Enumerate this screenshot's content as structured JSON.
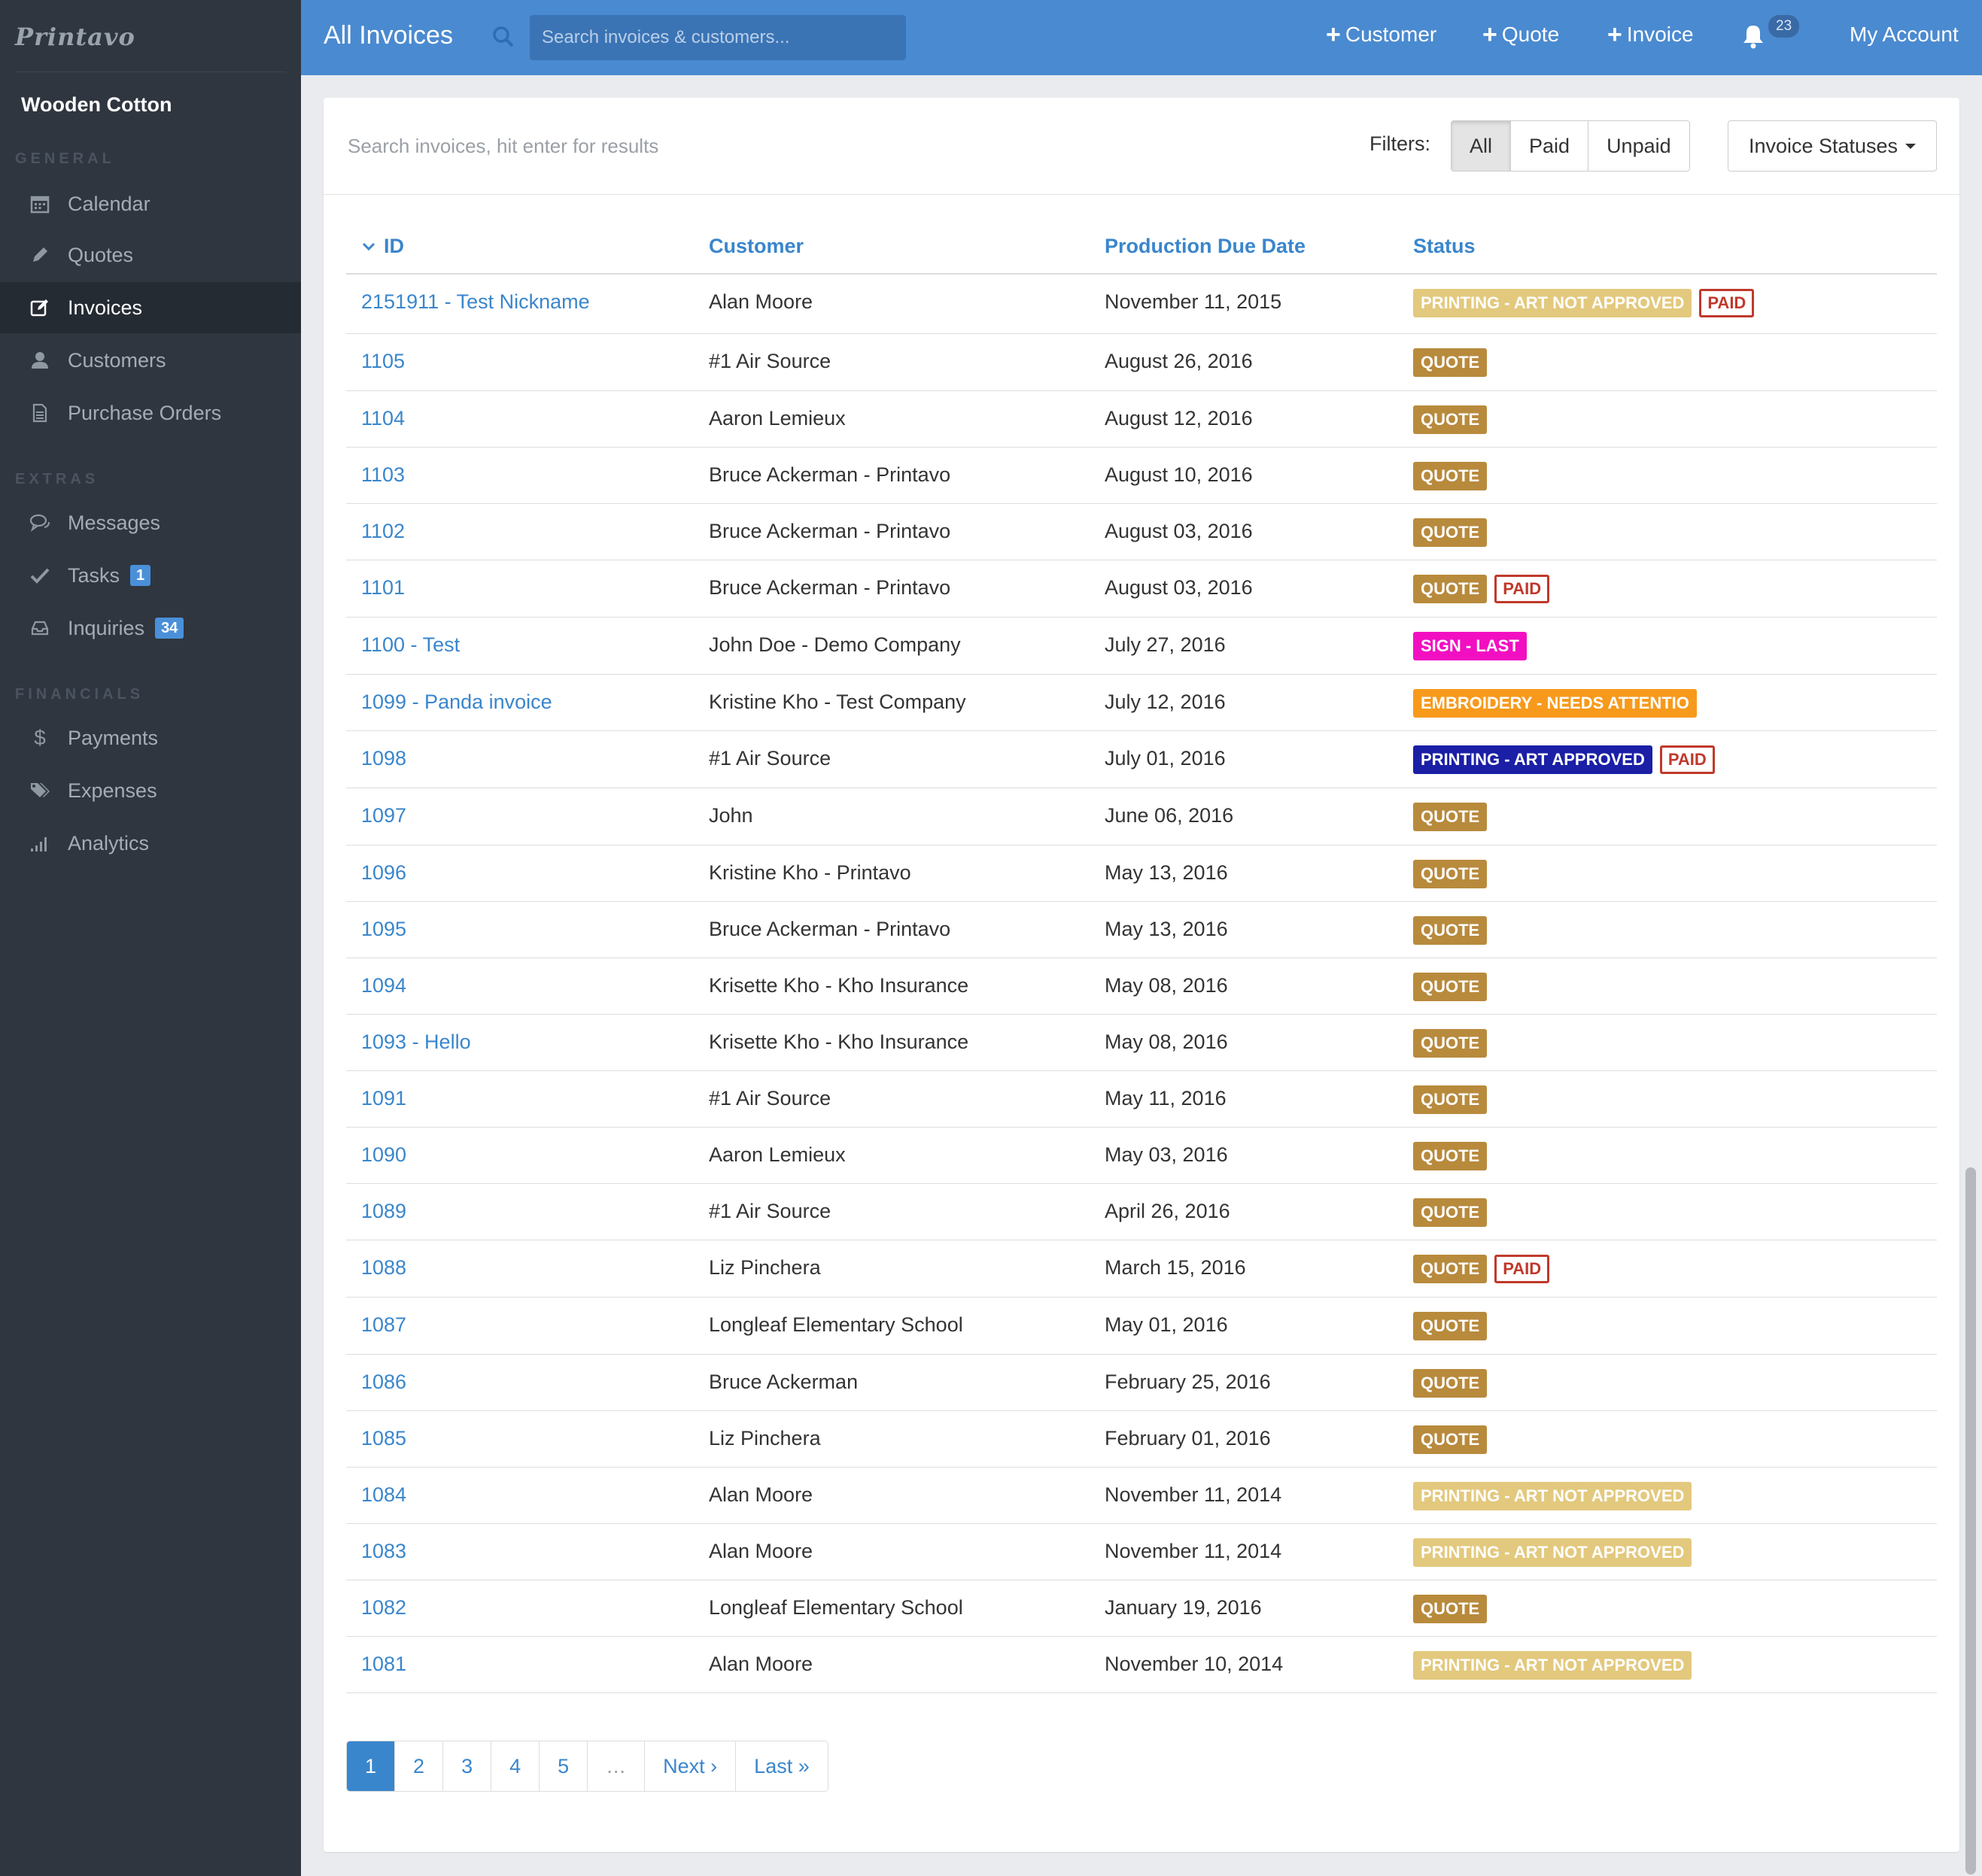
{
  "app": {
    "logo": "Printavo",
    "company": "Wooden Cotton"
  },
  "sidebar": {
    "sections": [
      {
        "label": "GENERAL",
        "items": [
          {
            "label": "Calendar",
            "icon": "calendar-icon"
          },
          {
            "label": "Quotes",
            "icon": "pencil-icon"
          },
          {
            "label": "Invoices",
            "icon": "edit-icon",
            "active": true
          },
          {
            "label": "Customers",
            "icon": "user-icon"
          },
          {
            "label": "Purchase Orders",
            "icon": "document-icon"
          }
        ]
      },
      {
        "label": "EXTRAS",
        "items": [
          {
            "label": "Messages",
            "icon": "chat-icon"
          },
          {
            "label": "Tasks",
            "icon": "check-icon",
            "badge": "1"
          },
          {
            "label": "Inquiries",
            "icon": "inbox-icon",
            "badge": "34"
          }
        ]
      },
      {
        "label": "FINANCIALS",
        "items": [
          {
            "label": "Payments",
            "icon": "dollar-icon"
          },
          {
            "label": "Expenses",
            "icon": "tags-icon"
          },
          {
            "label": "Analytics",
            "icon": "bar-chart-icon"
          }
        ]
      }
    ]
  },
  "topbar": {
    "title": "All Invoices",
    "search_placeholder": "Search invoices & customers...",
    "customer_label": "Customer",
    "quote_label": "Quote",
    "invoice_label": "Invoice",
    "notifications_count": "23",
    "account_label": "My Account"
  },
  "toolbar": {
    "search_placeholder": "Search invoices, hit enter for results",
    "filters_label": "Filters:",
    "filters": [
      "All",
      "Paid",
      "Unpaid"
    ],
    "active_filter": "All",
    "statuses_label": "Invoice Statuses"
  },
  "table": {
    "headers": {
      "id": "ID",
      "customer": "Customer",
      "due": "Production Due Date",
      "status": "Status"
    },
    "status_colors": {
      "PRINTING - ART NOT APPROVED": "#e3c97e",
      "QUOTE": "#b88a3c",
      "SIGN - LAST": "#f20fc2",
      "EMBROIDERY - NEEDS ATTENTIO": "#f79a1c",
      "PRINTING - ART APPROVED": "#1a1fa6"
    },
    "paid_label": "PAID",
    "rows": [
      {
        "id": "2151911 - Test Nickname",
        "customer": "Alan Moore",
        "due": "November 11, 2015",
        "status": "PRINTING - ART NOT APPROVED",
        "paid": true
      },
      {
        "id": "1105",
        "customer": "#1 Air Source",
        "due": "August 26, 2016",
        "status": "QUOTE",
        "paid": false
      },
      {
        "id": "1104",
        "customer": "Aaron Lemieux",
        "due": "August 12, 2016",
        "status": "QUOTE",
        "paid": false
      },
      {
        "id": "1103",
        "customer": "Bruce Ackerman - Printavo",
        "due": "August 10, 2016",
        "status": "QUOTE",
        "paid": false
      },
      {
        "id": "1102",
        "customer": "Bruce Ackerman - Printavo",
        "due": "August 03, 2016",
        "status": "QUOTE",
        "paid": false
      },
      {
        "id": "1101",
        "customer": "Bruce Ackerman - Printavo",
        "due": "August 03, 2016",
        "status": "QUOTE",
        "paid": true
      },
      {
        "id": "1100 - Test",
        "customer": "John Doe - Demo Company",
        "due": "July 27, 2016",
        "status": "SIGN - LAST",
        "paid": false
      },
      {
        "id": "1099 - Panda invoice",
        "customer": "Kristine Kho - Test Company",
        "due": "July 12, 2016",
        "status": "EMBROIDERY - NEEDS ATTENTIO",
        "paid": false
      },
      {
        "id": "1098",
        "customer": "#1 Air Source",
        "due": "July 01, 2016",
        "status": "PRINTING - ART APPROVED",
        "paid": true
      },
      {
        "id": "1097",
        "customer": "John",
        "due": "June 06, 2016",
        "status": "QUOTE",
        "paid": false
      },
      {
        "id": "1096",
        "customer": "Kristine Kho - Printavo",
        "due": "May 13, 2016",
        "status": "QUOTE",
        "paid": false
      },
      {
        "id": "1095",
        "customer": "Bruce Ackerman - Printavo",
        "due": "May 13, 2016",
        "status": "QUOTE",
        "paid": false
      },
      {
        "id": "1094",
        "customer": "Krisette Kho - Kho Insurance",
        "due": "May 08, 2016",
        "status": "QUOTE",
        "paid": false
      },
      {
        "id": "1093 - Hello",
        "customer": "Krisette Kho - Kho Insurance",
        "due": "May 08, 2016",
        "status": "QUOTE",
        "paid": false
      },
      {
        "id": "1091",
        "customer": "#1 Air Source",
        "due": "May 11, 2016",
        "status": "QUOTE",
        "paid": false
      },
      {
        "id": "1090",
        "customer": "Aaron Lemieux",
        "due": "May 03, 2016",
        "status": "QUOTE",
        "paid": false
      },
      {
        "id": "1089",
        "customer": "#1 Air Source",
        "due": "April 26, 2016",
        "status": "QUOTE",
        "paid": false
      },
      {
        "id": "1088",
        "customer": "Liz Pinchera",
        "due": "March 15, 2016",
        "status": "QUOTE",
        "paid": true
      },
      {
        "id": "1087",
        "customer": "Longleaf Elementary School",
        "due": "May 01, 2016",
        "status": "QUOTE",
        "paid": false
      },
      {
        "id": "1086",
        "customer": "Bruce Ackerman",
        "due": "February 25, 2016",
        "status": "QUOTE",
        "paid": false
      },
      {
        "id": "1085",
        "customer": "Liz Pinchera",
        "due": "February 01, 2016",
        "status": "QUOTE",
        "paid": false
      },
      {
        "id": "1084",
        "customer": "Alan Moore",
        "due": "November 11, 2014",
        "status": "PRINTING - ART NOT APPROVED",
        "paid": false
      },
      {
        "id": "1083",
        "customer": "Alan Moore",
        "due": "November 11, 2014",
        "status": "PRINTING - ART NOT APPROVED",
        "paid": false
      },
      {
        "id": "1082",
        "customer": "Longleaf Elementary School",
        "due": "January 19, 2016",
        "status": "QUOTE",
        "paid": false
      },
      {
        "id": "1081",
        "customer": "Alan Moore",
        "due": "November 10, 2014",
        "status": "PRINTING - ART NOT APPROVED",
        "paid": false
      }
    ]
  },
  "pagination": {
    "pages": [
      "1",
      "2",
      "3",
      "4",
      "5",
      "…",
      "Next ›",
      "Last »"
    ],
    "active": "1"
  }
}
